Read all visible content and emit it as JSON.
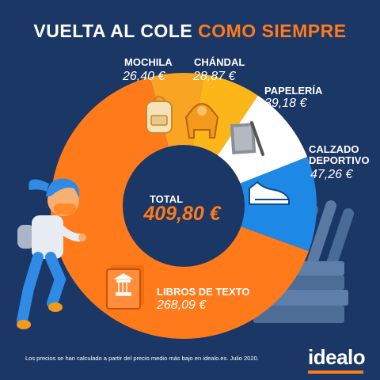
{
  "header": {
    "title_part1": "VUELTA AL COLE",
    "title_part2": "COMO SIEMPRE"
  },
  "chart_data": {
    "type": "pie",
    "donut": true,
    "currency": "€",
    "total_label": "TOTAL",
    "total_value": "409,80 €",
    "total": 409.8,
    "slices": [
      {
        "name": "MOCHILA",
        "value": 26.4,
        "value_label": "26,40 €",
        "color": "#f9a423"
      },
      {
        "name": "CHÁNDAL",
        "value": 28.87,
        "value_label": "28,87 €",
        "color": "#fcb61a"
      },
      {
        "name": "PAPELERÍA",
        "value": 39.18,
        "value_label": "39,18 €",
        "color": "#ffffff"
      },
      {
        "name": "CALZADO DEPORTIVO",
        "value": 47.26,
        "value_label": "47,26 €",
        "color": "#1e88e5"
      },
      {
        "name": "LIBROS DE TEXTO",
        "value": 268.09,
        "value_label": "268,09 €",
        "color": "#ff7a1a"
      }
    ]
  },
  "footer": {
    "note": "Los precios se han calculado a partir del precio medio más bajo en idealo.es. Julio 2020.",
    "logo": "idealo"
  },
  "icons": [
    "backpack-icon",
    "hoodie-icon",
    "notebook-pencil-icon",
    "sneaker-icon",
    "textbook-icon",
    "girl-illustration",
    "pencils-illustration",
    "books-stack-illustration"
  ]
}
